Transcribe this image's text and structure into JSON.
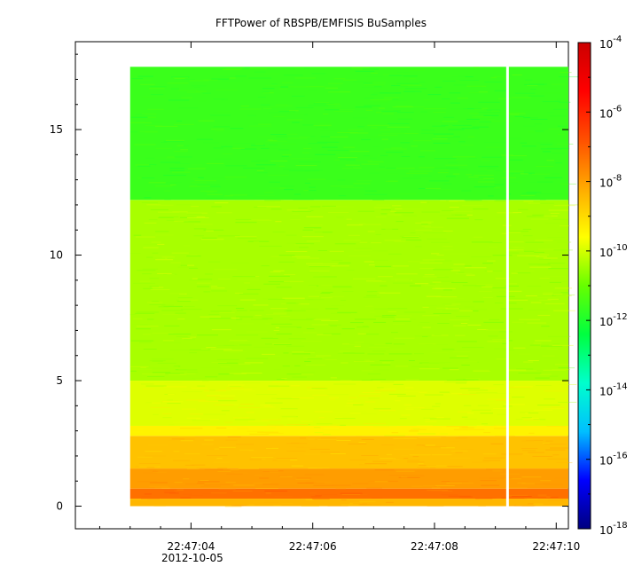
{
  "chart_data": {
    "type": "heatmap",
    "title": "FFTPower of RBSPB/EMFISIS  BuSamples",
    "xlabel": "",
    "ylabel": "",
    "x_ticks": [
      "22:47:04",
      "22:47:06",
      "22:47:08",
      "22:47:10"
    ],
    "x_date_label": "2012-10-05",
    "x_time_range": [
      "22:47:02.1",
      "22:47:10.2"
    ],
    "data_time_range": [
      "22:47:03.0",
      "22:47:10.2"
    ],
    "gap_time": "22:47:09.2",
    "y_ticks": [
      0,
      5,
      10,
      15
    ],
    "ylim": [
      -0.9,
      18.5
    ],
    "data_y_range": [
      0,
      17.5
    ],
    "colorbar": {
      "scale": "log",
      "range_exponent": [
        -18,
        -4
      ],
      "tick_labels": [
        "10",
        "10",
        "10",
        "10",
        "10",
        "10",
        "10",
        "10"
      ],
      "tick_exponents": [
        "-4",
        "-6",
        "-8",
        "-10",
        "-12",
        "-14",
        "-16",
        "-18"
      ],
      "tick_values": [
        -4,
        -6,
        -8,
        -10,
        -12,
        -14,
        -16,
        -18
      ],
      "colormap": [
        "#00007f",
        "#0000ff",
        "#00bfff",
        "#00ffcc",
        "#00ff40",
        "#66ff00",
        "#ffff00",
        "#ffaa00",
        "#ff5000",
        "#ff0000",
        "#cc0000"
      ]
    },
    "bands": [
      {
        "y_from": 0.0,
        "y_to": 0.3,
        "log_power": -8.4
      },
      {
        "y_from": 0.3,
        "y_to": 0.7,
        "log_power": -7.3
      },
      {
        "y_from": 0.7,
        "y_to": 1.5,
        "log_power": -8.0
      },
      {
        "y_from": 1.5,
        "y_to": 2.8,
        "log_power": -8.6
      },
      {
        "y_from": 2.8,
        "y_to": 3.2,
        "log_power": -9.4
      },
      {
        "y_from": 3.2,
        "y_to": 5.0,
        "log_power": -9.9
      },
      {
        "y_from": 5.0,
        "y_to": 12.2,
        "log_power": -10.4
      },
      {
        "y_from": 12.2,
        "y_to": 17.5,
        "log_power": -11.6
      }
    ]
  }
}
